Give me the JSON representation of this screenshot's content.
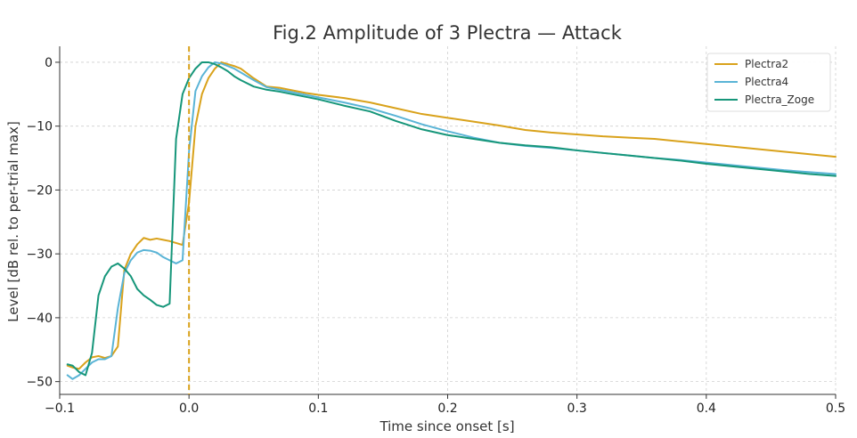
{
  "chart_data": {
    "type": "line",
    "title": "Fig.2 Amplitude of 3 Plectra — Attack",
    "xlabel": "Time since onset [s]",
    "ylabel": "Level [dB rel. to per-trial max]",
    "xlim": [
      -0.1,
      0.5
    ],
    "ylim": [
      -52,
      2.5
    ],
    "xticks": [
      -0.1,
      0.0,
      0.1,
      0.2,
      0.3,
      0.4,
      0.5
    ],
    "xtick_labels": [
      "−0.1",
      "0.0",
      "0.1",
      "0.2",
      "0.3",
      "0.4",
      "0.5"
    ],
    "yticks": [
      0,
      -10,
      -20,
      -30,
      -40,
      -50
    ],
    "ytick_labels": [
      "0",
      "−10",
      "−20",
      "−30",
      "−40",
      "−50"
    ],
    "grid": true,
    "legend_position": "top-right",
    "vline": {
      "x": 0.0,
      "style": "dashed",
      "color": "#D9A21B"
    },
    "series": [
      {
        "name": "Plectra2",
        "color": "#D9A21B",
        "x": [
          -0.094,
          -0.09,
          -0.085,
          -0.08,
          -0.075,
          -0.07,
          -0.065,
          -0.06,
          -0.055,
          -0.05,
          -0.045,
          -0.04,
          -0.035,
          -0.03,
          -0.025,
          -0.02,
          -0.015,
          -0.01,
          -0.005,
          0.0,
          0.005,
          0.01,
          0.015,
          0.02,
          0.025,
          0.03,
          0.035,
          0.04,
          0.05,
          0.06,
          0.07,
          0.08,
          0.09,
          0.1,
          0.12,
          0.14,
          0.16,
          0.18,
          0.2,
          0.22,
          0.24,
          0.26,
          0.28,
          0.3,
          0.32,
          0.34,
          0.36,
          0.38,
          0.4,
          0.42,
          0.44,
          0.46,
          0.48,
          0.5
        ],
        "y": [
          -47.5,
          -47.8,
          -48.0,
          -47.0,
          -46.2,
          -46.0,
          -46.3,
          -46.0,
          -44.5,
          -32.5,
          -30.0,
          -28.5,
          -27.5,
          -27.8,
          -27.6,
          -27.8,
          -28.0,
          -28.3,
          -28.6,
          -22.0,
          -10.0,
          -5.0,
          -2.5,
          -1.0,
          0.0,
          -0.3,
          -0.6,
          -1.0,
          -2.5,
          -3.8,
          -4.0,
          -4.4,
          -4.8,
          -5.1,
          -5.6,
          -6.3,
          -7.2,
          -8.1,
          -8.7,
          -9.3,
          -9.9,
          -10.6,
          -11.0,
          -11.3,
          -11.6,
          -11.8,
          -12.0,
          -12.4,
          -12.8,
          -13.2,
          -13.6,
          -14.0,
          -14.4,
          -14.8
        ]
      },
      {
        "name": "Plectra4",
        "color": "#5AB4D6",
        "x": [
          -0.094,
          -0.09,
          -0.085,
          -0.08,
          -0.075,
          -0.07,
          -0.065,
          -0.06,
          -0.055,
          -0.05,
          -0.045,
          -0.04,
          -0.035,
          -0.03,
          -0.025,
          -0.02,
          -0.015,
          -0.01,
          -0.005,
          0.0,
          0.005,
          0.01,
          0.015,
          0.02,
          0.025,
          0.03,
          0.035,
          0.04,
          0.05,
          0.06,
          0.07,
          0.08,
          0.09,
          0.1,
          0.12,
          0.14,
          0.16,
          0.18,
          0.2,
          0.22,
          0.24,
          0.26,
          0.28,
          0.3,
          0.32,
          0.34,
          0.36,
          0.38,
          0.4,
          0.42,
          0.44,
          0.46,
          0.48,
          0.5
        ],
        "y": [
          -49.0,
          -49.6,
          -49.0,
          -48.0,
          -47.0,
          -46.5,
          -46.5,
          -46.0,
          -38.5,
          -33.0,
          -31.0,
          -29.8,
          -29.4,
          -29.5,
          -29.8,
          -30.5,
          -31.0,
          -31.5,
          -31.0,
          -14.0,
          -4.5,
          -2.2,
          -0.8,
          0.0,
          -0.2,
          -0.6,
          -1.0,
          -1.6,
          -2.8,
          -3.9,
          -4.3,
          -4.7,
          -5.1,
          -5.5,
          -6.3,
          -7.2,
          -8.4,
          -9.7,
          -10.8,
          -11.8,
          -12.6,
          -13.1,
          -13.4,
          -13.8,
          -14.2,
          -14.6,
          -15.0,
          -15.3,
          -15.7,
          -16.1,
          -16.5,
          -16.9,
          -17.2,
          -17.5
        ]
      },
      {
        "name": "Plectra_Zoge",
        "color": "#16967A",
        "x": [
          -0.094,
          -0.09,
          -0.085,
          -0.08,
          -0.075,
          -0.07,
          -0.065,
          -0.06,
          -0.055,
          -0.05,
          -0.045,
          -0.04,
          -0.035,
          -0.03,
          -0.025,
          -0.02,
          -0.015,
          -0.01,
          -0.005,
          0.0,
          0.005,
          0.01,
          0.015,
          0.02,
          0.025,
          0.03,
          0.035,
          0.04,
          0.05,
          0.06,
          0.07,
          0.08,
          0.09,
          0.1,
          0.12,
          0.14,
          0.16,
          0.18,
          0.2,
          0.22,
          0.24,
          0.26,
          0.28,
          0.3,
          0.32,
          0.34,
          0.36,
          0.38,
          0.4,
          0.42,
          0.44,
          0.46,
          0.48,
          0.5
        ],
        "y": [
          -47.3,
          -47.5,
          -48.5,
          -49.0,
          -45.5,
          -36.5,
          -33.5,
          -32.0,
          -31.5,
          -32.3,
          -33.5,
          -35.5,
          -36.5,
          -37.2,
          -38.0,
          -38.3,
          -37.8,
          -12.0,
          -5.0,
          -2.5,
          -1.0,
          0.0,
          0.0,
          -0.3,
          -0.8,
          -1.4,
          -2.2,
          -2.8,
          -3.8,
          -4.3,
          -4.6,
          -5.0,
          -5.4,
          -5.8,
          -6.8,
          -7.7,
          -9.2,
          -10.5,
          -11.4,
          -12.0,
          -12.6,
          -13.0,
          -13.3,
          -13.8,
          -14.2,
          -14.6,
          -15.0,
          -15.4,
          -15.9,
          -16.3,
          -16.7,
          -17.1,
          -17.5,
          -17.8
        ]
      }
    ]
  }
}
